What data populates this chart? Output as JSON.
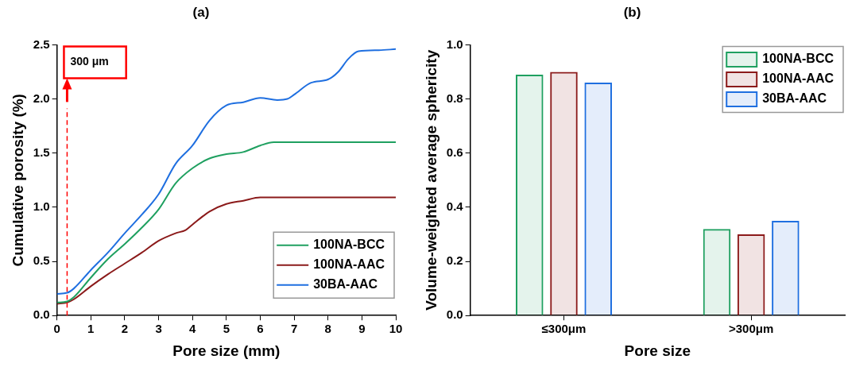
{
  "chart_data": [
    {
      "type": "line",
      "title": "(a)",
      "xlabel": "Pore size (mm)",
      "ylabel": "Cumulative porosity (%)",
      "xlim": [
        0,
        10
      ],
      "xticks": [
        0,
        1,
        2,
        3,
        4,
        5,
        6,
        7,
        8,
        9,
        10
      ],
      "ylim": [
        0,
        2.5
      ],
      "yticks": [
        {
          "value": 0,
          "label": "0.0"
        },
        0.5,
        {
          "value": 1,
          "label": "1.0"
        },
        1.5,
        {
          "value": 2,
          "label": "2.0"
        },
        2.5
      ],
      "grid": false,
      "legend": "bottom right",
      "marker": "none",
      "line_style": "solid",
      "ref_lines": [
        {
          "axis": "x",
          "value": 0.3,
          "color": "#ff0000",
          "line_style": "dashed"
        }
      ],
      "annotations": [
        "300 μm"
      ],
      "series": [
        {
          "name": "100NA-BCC",
          "color": "#1fa060",
          "x": [
            0,
            0.3,
            0.5,
            1,
            1.5,
            2,
            2.5,
            3,
            3.5,
            4,
            4.5,
            5,
            5.5,
            6,
            6.4,
            7,
            8,
            9,
            10
          ],
          "values": [
            0.12,
            0.13,
            0.17,
            0.35,
            0.52,
            0.66,
            0.81,
            0.98,
            1.22,
            1.36,
            1.45,
            1.49,
            1.51,
            1.57,
            1.6,
            1.6,
            1.6,
            1.6,
            1.6
          ]
        },
        {
          "name": "100NA-AAC",
          "color": "#8b1a1a",
          "x": [
            0,
            0.3,
            0.5,
            1,
            1.5,
            2,
            2.5,
            3,
            3.5,
            3.8,
            4,
            4.5,
            5,
            5.5,
            6,
            7,
            8,
            9,
            10
          ],
          "values": [
            0.11,
            0.12,
            0.15,
            0.27,
            0.38,
            0.48,
            0.58,
            0.69,
            0.76,
            0.79,
            0.84,
            0.96,
            1.03,
            1.06,
            1.09,
            1.09,
            1.09,
            1.09,
            1.09
          ]
        },
        {
          "name": "30BA-AAC",
          "color": "#1f6fe0",
          "x": [
            0,
            0.3,
            0.5,
            1,
            1.5,
            2,
            2.5,
            3,
            3.5,
            4,
            4.5,
            5,
            5.5,
            6,
            6.5,
            6.8,
            7,
            7.5,
            8,
            8.3,
            8.6,
            8.9,
            9.5,
            10
          ],
          "values": [
            0.2,
            0.21,
            0.25,
            0.42,
            0.58,
            0.76,
            0.93,
            1.12,
            1.4,
            1.57,
            1.8,
            1.94,
            1.97,
            2.01,
            1.99,
            2.0,
            2.04,
            2.15,
            2.18,
            2.25,
            2.37,
            2.44,
            2.45,
            2.46
          ]
        }
      ]
    },
    {
      "type": "bar",
      "title": "(b)",
      "xlabel": "Pore size",
      "ylabel": "Volume-weighted average sphericity",
      "categories": [
        "≤300μm",
        ">300μm"
      ],
      "ylim": [
        0,
        1.0
      ],
      "yticks": [
        {
          "value": 0,
          "label": "0.0"
        },
        0.2,
        0.4,
        0.6,
        0.8,
        {
          "value": 1,
          "label": "1.0"
        }
      ],
      "grid": false,
      "legend": "top right",
      "series": [
        {
          "name": "100NA-BCC",
          "color": "#1fa060",
          "values": [
            0.89,
            0.32
          ]
        },
        {
          "name": "100NA-AAC",
          "color": "#8b1a1a",
          "values": [
            0.9,
            0.3
          ]
        },
        {
          "name": "30BA-AAC",
          "color": "#1f6fe0",
          "values": [
            0.86,
            0.35
          ]
        }
      ]
    }
  ]
}
